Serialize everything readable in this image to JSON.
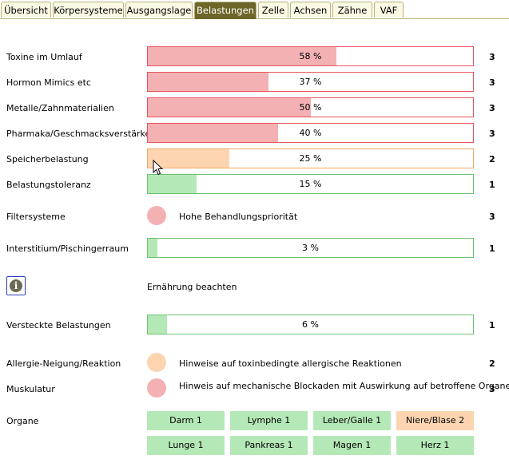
{
  "tabs": [
    {
      "label": "Übersicht",
      "active": false
    },
    {
      "label": "Körpersysteme",
      "active": false
    },
    {
      "label": "Ausgangslage",
      "active": false
    },
    {
      "label": "Belastungen",
      "active": true
    },
    {
      "label": "Zelle",
      "active": false
    },
    {
      "label": "Achsen",
      "active": false
    },
    {
      "label": "Zähne",
      "active": false
    },
    {
      "label": "VAF",
      "active": false
    }
  ],
  "colors": {
    "red_fill": "#f4b1b4",
    "red_border": "#e8555d",
    "orange_fill": "#fcd5b0",
    "orange_border": "#efa867",
    "green_fill": "#b5e8b7",
    "green_border": "#6cc26f"
  },
  "rows": {
    "toxine": {
      "label": "Toxine im Umlauf",
      "value": 0.58,
      "percent_text": "58 %",
      "level": "3",
      "status": "red"
    },
    "hormon": {
      "label": "Hormon Mimics etc",
      "value": 0.37,
      "percent_text": "37 %",
      "level": "3",
      "status": "red"
    },
    "metalle": {
      "label": "Metalle/Zahnmaterialien",
      "value": 0.5,
      "percent_text": "50 %",
      "level": "3",
      "status": "red"
    },
    "pharmaka": {
      "label": "Pharmaka/Geschmacksverstärker",
      "value": 0.4,
      "percent_text": "40 %",
      "level": "3",
      "status": "red"
    },
    "speicher": {
      "label": "Speicherbelastung",
      "value": 0.25,
      "percent_text": "25 %",
      "level": "2",
      "status": "orange"
    },
    "toleranz": {
      "label": "Belastungstoleranz",
      "value": 0.15,
      "percent_text": "15 %",
      "level": "1",
      "status": "green"
    },
    "filter": {
      "label": "Filtersysteme",
      "note": "Hohe Behandlungspriorität",
      "level": "3",
      "status": "red"
    },
    "interstitium": {
      "label": "Interstitium/Pischingerraum",
      "value": 0.03,
      "percent_text": "3 %",
      "level": "1",
      "status": "green"
    },
    "ernaehrung": {
      "note": "Ernährung beachten",
      "icon": "info-icon"
    },
    "versteckt": {
      "label": "Versteckte Belastungen",
      "value": 0.06,
      "percent_text": "6 %",
      "level": "1",
      "status": "green"
    },
    "allergie": {
      "label": "Allergie-Neigung/Reaktion",
      "note": "Hinweise auf toxinbedingte allergische Reaktionen",
      "level": "2",
      "status": "orange"
    },
    "muskulatur": {
      "label": "Muskulatur",
      "note": "Hinweis auf mechanische Blockaden mit Auswirkung auf betroffene Organe",
      "level": "3",
      "status": "red"
    }
  },
  "organe": {
    "label": "Organe",
    "items": [
      {
        "label": "Darm 1",
        "status": "green"
      },
      {
        "label": "Lymphe 1",
        "status": "green"
      },
      {
        "label": "Leber/Galle 1",
        "status": "green"
      },
      {
        "label": "Niere/Blase 2",
        "status": "orange"
      },
      {
        "label": "Lunge 1",
        "status": "green"
      },
      {
        "label": "Pankreas 1",
        "status": "green"
      },
      {
        "label": "Magen 1",
        "status": "green"
      },
      {
        "label": "Herz 1",
        "status": "green"
      }
    ]
  }
}
